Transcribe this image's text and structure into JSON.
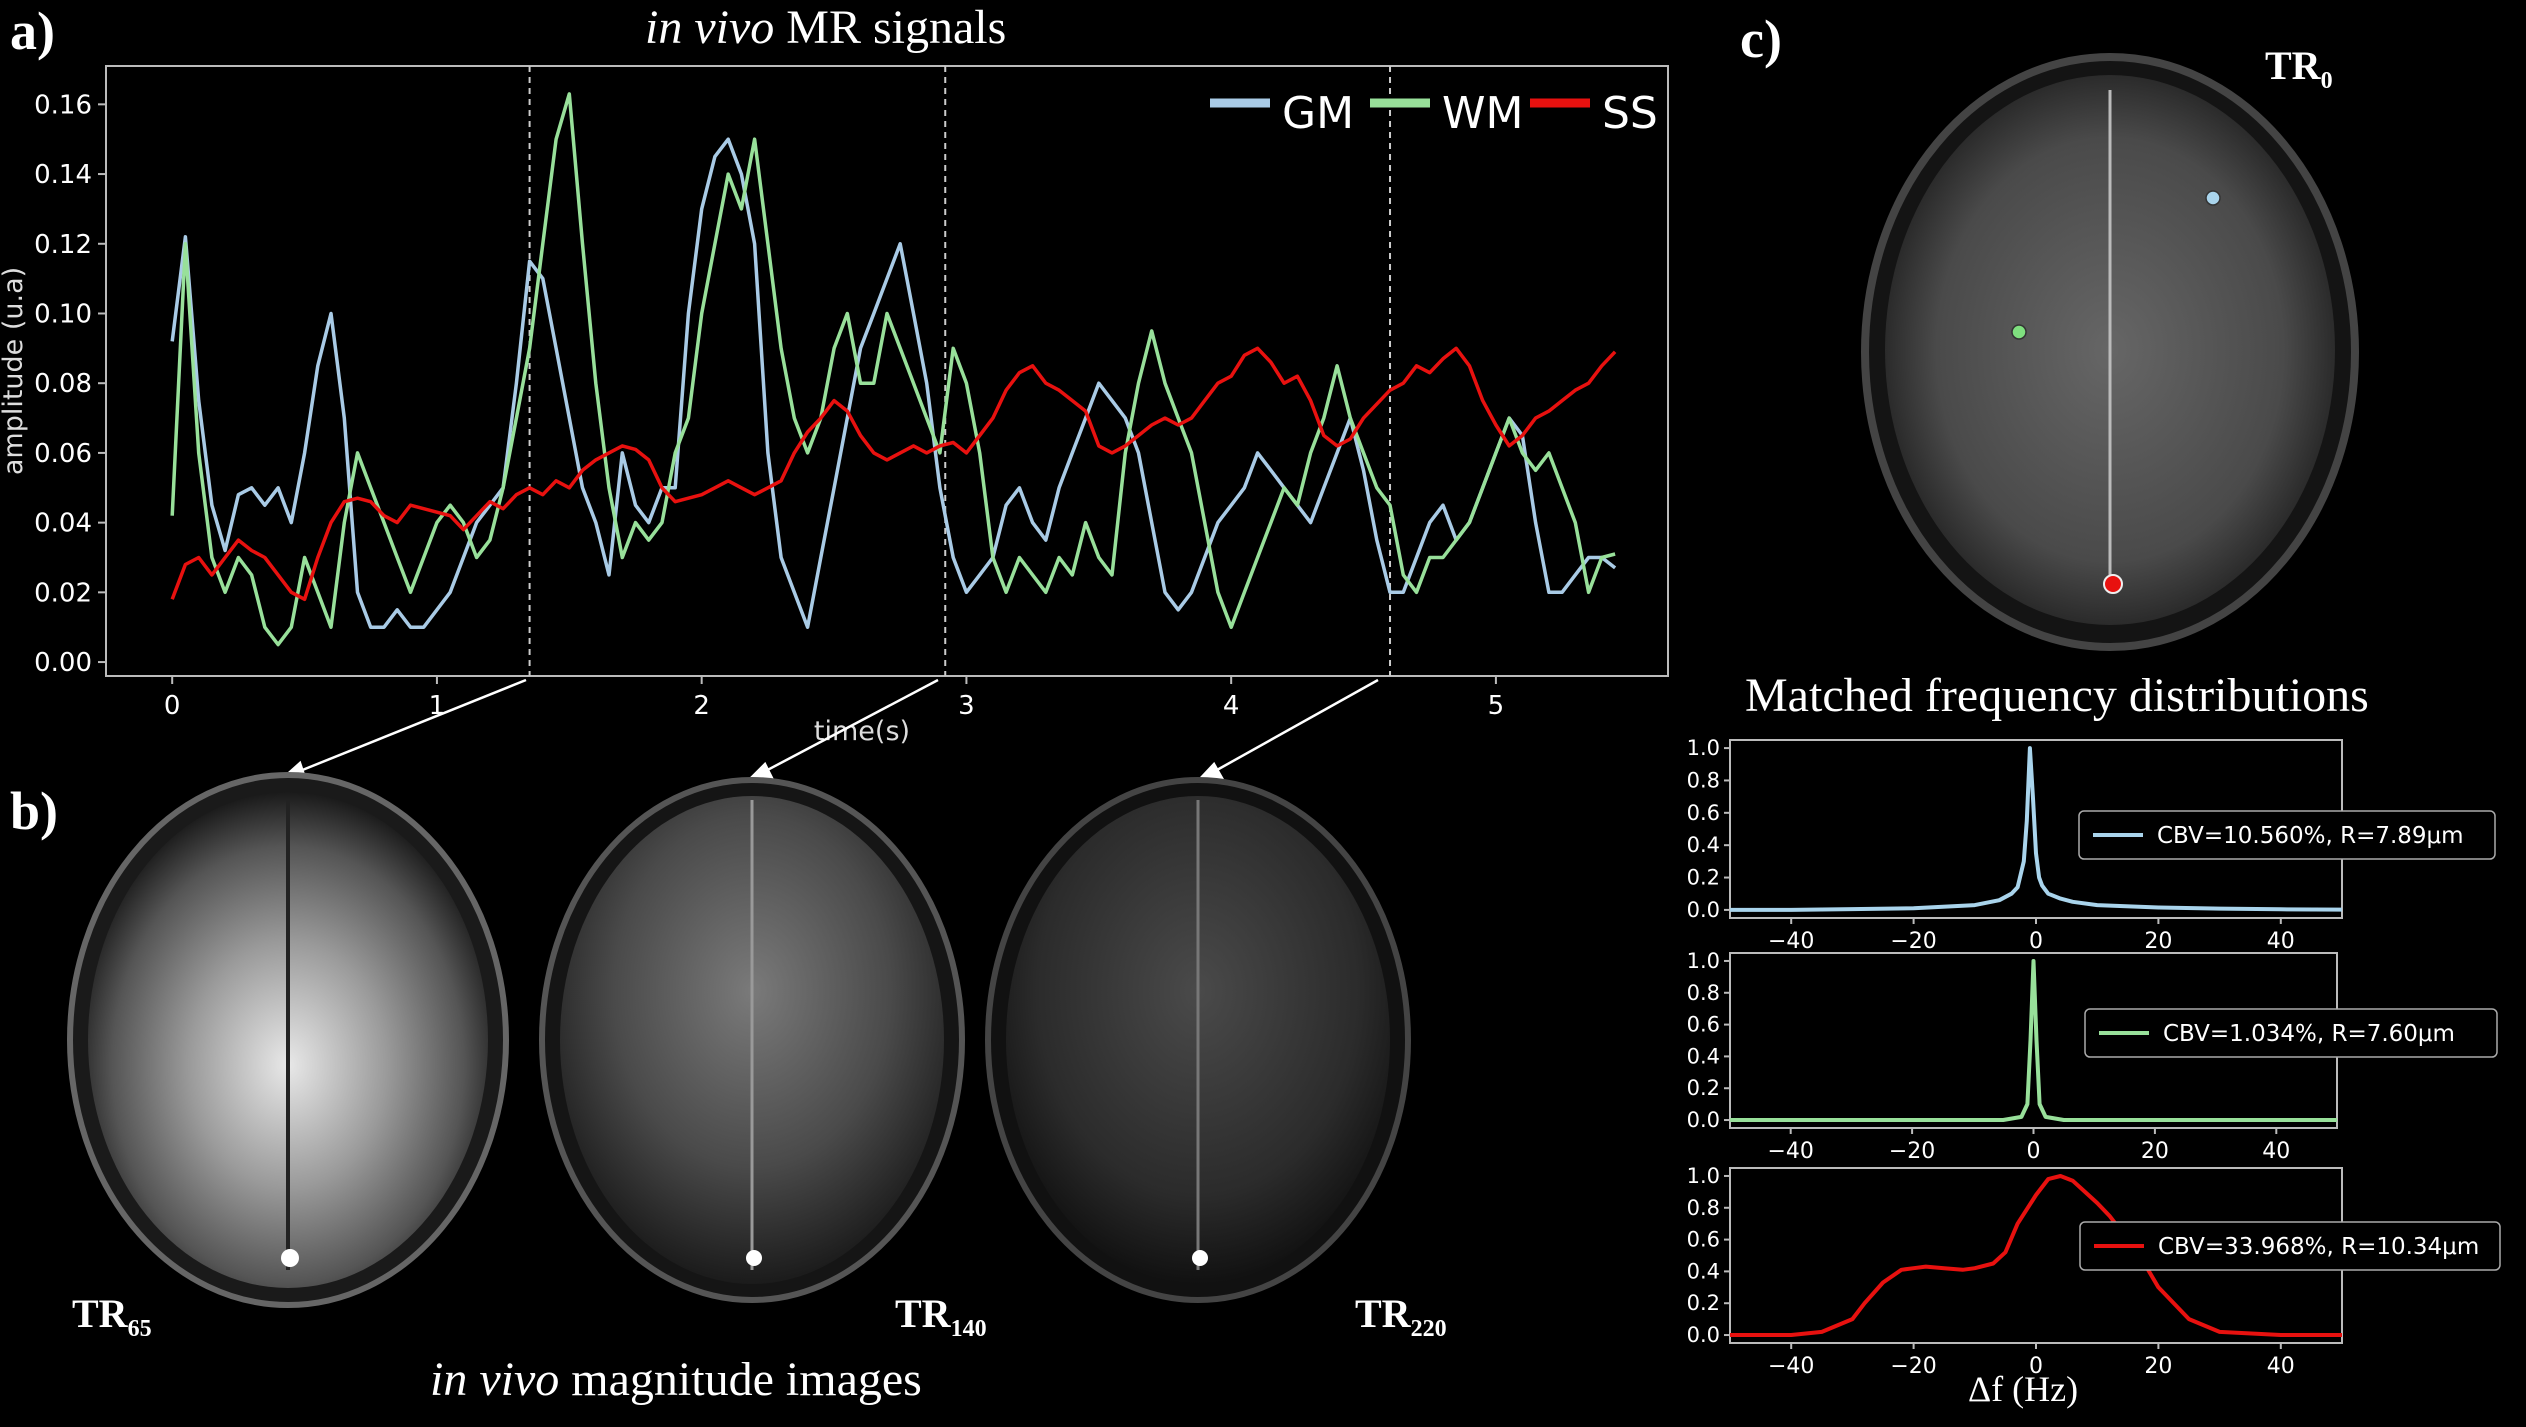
{
  "panels": {
    "a": "a)",
    "b": "b)",
    "c": "c)"
  },
  "signals": {
    "title_italic": "in vivo",
    "title_rest": "MR signals",
    "chart_data": {
      "type": "line",
      "xlabel": "time(s)",
      "ylabel": "amplitude (u.a)",
      "xlim": [
        -0.25,
        5.65
      ],
      "ylim": [
        -0.004,
        0.171
      ],
      "xticks": [
        "0",
        "1",
        "2",
        "3",
        "4",
        "5"
      ],
      "yticks": [
        "0.00",
        "0.02",
        "0.04",
        "0.06",
        "0.08",
        "0.10",
        "0.12",
        "0.14",
        "0.16"
      ],
      "vlines": [
        1.35,
        2.92,
        4.6
      ],
      "legend_position": "top-right",
      "series": [
        {
          "name": "GM",
          "color": "#a9cbe6",
          "x": [
            0,
            0.05,
            0.1,
            0.15,
            0.2,
            0.25,
            0.3,
            0.35,
            0.4,
            0.45,
            0.5,
            0.55,
            0.6,
            0.65,
            0.7,
            0.75,
            0.8,
            0.85,
            0.9,
            0.95,
            1.0,
            1.05,
            1.1,
            1.15,
            1.2,
            1.25,
            1.3,
            1.35,
            1.4,
            1.45,
            1.5,
            1.55,
            1.6,
            1.65,
            1.7,
            1.75,
            1.8,
            1.85,
            1.9,
            1.95,
            2.0,
            2.05,
            2.1,
            2.15,
            2.2,
            2.25,
            2.3,
            2.35,
            2.4,
            2.45,
            2.5,
            2.55,
            2.6,
            2.65,
            2.7,
            2.75,
            2.8,
            2.85,
            2.9,
            2.95,
            3.0,
            3.05,
            3.1,
            3.15,
            3.2,
            3.25,
            3.3,
            3.35,
            3.4,
            3.45,
            3.5,
            3.55,
            3.6,
            3.65,
            3.7,
            3.75,
            3.8,
            3.85,
            3.9,
            3.95,
            4.0,
            4.05,
            4.1,
            4.15,
            4.2,
            4.25,
            4.3,
            4.35,
            4.4,
            4.45,
            4.5,
            4.55,
            4.6,
            4.65,
            4.7,
            4.75,
            4.8,
            4.85,
            4.9,
            4.95,
            5.0,
            5.05,
            5.1,
            5.15,
            5.2,
            5.25,
            5.3,
            5.35,
            5.4,
            5.45
          ],
          "values": [
            0.092,
            0.122,
            0.075,
            0.045,
            0.032,
            0.048,
            0.05,
            0.045,
            0.05,
            0.04,
            0.06,
            0.085,
            0.1,
            0.07,
            0.02,
            0.01,
            0.01,
            0.015,
            0.01,
            0.01,
            0.015,
            0.02,
            0.03,
            0.04,
            0.045,
            0.05,
            0.08,
            0.115,
            0.11,
            0.09,
            0.07,
            0.05,
            0.04,
            0.025,
            0.06,
            0.045,
            0.04,
            0.05,
            0.05,
            0.1,
            0.13,
            0.145,
            0.15,
            0.14,
            0.12,
            0.06,
            0.03,
            0.02,
            0.01,
            0.03,
            0.05,
            0.07,
            0.09,
            0.1,
            0.11,
            0.12,
            0.1,
            0.08,
            0.05,
            0.03,
            0.02,
            0.025,
            0.03,
            0.045,
            0.05,
            0.04,
            0.035,
            0.05,
            0.06,
            0.07,
            0.08,
            0.075,
            0.07,
            0.06,
            0.04,
            0.02,
            0.015,
            0.02,
            0.03,
            0.04,
            0.045,
            0.05,
            0.06,
            0.055,
            0.05,
            0.045,
            0.04,
            0.05,
            0.06,
            0.07,
            0.055,
            0.035,
            0.02,
            0.02,
            0.03,
            0.04,
            0.045,
            0.035,
            0.04,
            0.05,
            0.06,
            0.07,
            0.065,
            0.04,
            0.02,
            0.02,
            0.025,
            0.03,
            0.03,
            0.027
          ]
        },
        {
          "name": "WM",
          "color": "#98e09a",
          "x": [
            0,
            0.05,
            0.1,
            0.15,
            0.2,
            0.25,
            0.3,
            0.35,
            0.4,
            0.45,
            0.5,
            0.55,
            0.6,
            0.65,
            0.7,
            0.75,
            0.8,
            0.85,
            0.9,
            0.95,
            1.0,
            1.05,
            1.1,
            1.15,
            1.2,
            1.25,
            1.3,
            1.35,
            1.4,
            1.45,
            1.5,
            1.55,
            1.6,
            1.65,
            1.7,
            1.75,
            1.8,
            1.85,
            1.9,
            1.95,
            2.0,
            2.05,
            2.1,
            2.15,
            2.2,
            2.25,
            2.3,
            2.35,
            2.4,
            2.45,
            2.5,
            2.55,
            2.6,
            2.65,
            2.7,
            2.75,
            2.8,
            2.85,
            2.9,
            2.95,
            3.0,
            3.05,
            3.1,
            3.15,
            3.2,
            3.25,
            3.3,
            3.35,
            3.4,
            3.45,
            3.5,
            3.55,
            3.6,
            3.65,
            3.7,
            3.75,
            3.8,
            3.85,
            3.9,
            3.95,
            4.0,
            4.05,
            4.1,
            4.15,
            4.2,
            4.25,
            4.3,
            4.35,
            4.4,
            4.45,
            4.5,
            4.55,
            4.6,
            4.65,
            4.7,
            4.75,
            4.8,
            4.85,
            4.9,
            4.95,
            5.0,
            5.05,
            5.1,
            5.15,
            5.2,
            5.25,
            5.3,
            5.35,
            5.4,
            5.45
          ],
          "values": [
            0.042,
            0.12,
            0.06,
            0.03,
            0.02,
            0.03,
            0.025,
            0.01,
            0.005,
            0.01,
            0.03,
            0.02,
            0.01,
            0.04,
            0.06,
            0.05,
            0.04,
            0.03,
            0.02,
            0.03,
            0.04,
            0.045,
            0.04,
            0.03,
            0.035,
            0.05,
            0.07,
            0.09,
            0.12,
            0.15,
            0.163,
            0.12,
            0.08,
            0.05,
            0.03,
            0.04,
            0.035,
            0.04,
            0.06,
            0.07,
            0.1,
            0.12,
            0.14,
            0.13,
            0.15,
            0.12,
            0.09,
            0.07,
            0.06,
            0.07,
            0.09,
            0.1,
            0.08,
            0.08,
            0.1,
            0.09,
            0.08,
            0.07,
            0.06,
            0.09,
            0.08,
            0.06,
            0.03,
            0.02,
            0.03,
            0.025,
            0.02,
            0.03,
            0.025,
            0.04,
            0.03,
            0.025,
            0.06,
            0.08,
            0.095,
            0.08,
            0.07,
            0.06,
            0.04,
            0.02,
            0.01,
            0.02,
            0.03,
            0.04,
            0.05,
            0.045,
            0.06,
            0.07,
            0.085,
            0.07,
            0.06,
            0.05,
            0.045,
            0.025,
            0.02,
            0.03,
            0.03,
            0.035,
            0.04,
            0.05,
            0.06,
            0.07,
            0.06,
            0.055,
            0.06,
            0.05,
            0.04,
            0.02,
            0.03,
            0.031
          ]
        },
        {
          "name": "SS",
          "color": "#e8110f",
          "x": [
            0,
            0.05,
            0.1,
            0.15,
            0.2,
            0.25,
            0.3,
            0.35,
            0.4,
            0.45,
            0.5,
            0.55,
            0.6,
            0.65,
            0.7,
            0.75,
            0.8,
            0.85,
            0.9,
            0.95,
            1.0,
            1.05,
            1.1,
            1.15,
            1.2,
            1.25,
            1.3,
            1.35,
            1.4,
            1.45,
            1.5,
            1.55,
            1.6,
            1.65,
            1.7,
            1.75,
            1.8,
            1.85,
            1.9,
            1.95,
            2.0,
            2.05,
            2.1,
            2.15,
            2.2,
            2.25,
            2.3,
            2.35,
            2.4,
            2.45,
            2.5,
            2.55,
            2.6,
            2.65,
            2.7,
            2.75,
            2.8,
            2.85,
            2.9,
            2.95,
            3.0,
            3.05,
            3.1,
            3.15,
            3.2,
            3.25,
            3.3,
            3.35,
            3.4,
            3.45,
            3.5,
            3.55,
            3.6,
            3.65,
            3.7,
            3.75,
            3.8,
            3.85,
            3.9,
            3.95,
            4.0,
            4.05,
            4.1,
            4.15,
            4.2,
            4.25,
            4.3,
            4.35,
            4.4,
            4.45,
            4.5,
            4.55,
            4.6,
            4.65,
            4.7,
            4.75,
            4.8,
            4.85,
            4.9,
            4.95,
            5.0,
            5.05,
            5.1,
            5.15,
            5.2,
            5.25,
            5.3,
            5.35,
            5.4,
            5.45
          ],
          "values": [
            0.018,
            0.028,
            0.03,
            0.025,
            0.03,
            0.035,
            0.032,
            0.03,
            0.025,
            0.02,
            0.018,
            0.03,
            0.04,
            0.046,
            0.047,
            0.046,
            0.042,
            0.04,
            0.045,
            0.044,
            0.043,
            0.042,
            0.038,
            0.042,
            0.046,
            0.044,
            0.048,
            0.05,
            0.048,
            0.052,
            0.05,
            0.055,
            0.058,
            0.06,
            0.062,
            0.061,
            0.058,
            0.05,
            0.046,
            0.047,
            0.048,
            0.05,
            0.052,
            0.05,
            0.048,
            0.05,
            0.052,
            0.06,
            0.066,
            0.07,
            0.075,
            0.072,
            0.065,
            0.06,
            0.058,
            0.06,
            0.062,
            0.06,
            0.062,
            0.063,
            0.06,
            0.065,
            0.07,
            0.078,
            0.083,
            0.085,
            0.08,
            0.078,
            0.075,
            0.072,
            0.062,
            0.06,
            0.062,
            0.065,
            0.068,
            0.07,
            0.068,
            0.07,
            0.075,
            0.08,
            0.082,
            0.088,
            0.09,
            0.086,
            0.08,
            0.082,
            0.075,
            0.065,
            0.062,
            0.064,
            0.07,
            0.074,
            0.078,
            0.08,
            0.085,
            0.083,
            0.087,
            0.09,
            0.085,
            0.075,
            0.068,
            0.062,
            0.065,
            0.07,
            0.072,
            0.075,
            0.078,
            0.08,
            0.085,
            0.089
          ]
        }
      ]
    }
  },
  "magnitude": {
    "caption_italic": "in vivo",
    "caption_rest": "magnitude images",
    "images": [
      {
        "tr_main": "TR",
        "tr_sub": "65"
      },
      {
        "tr_main": "TR",
        "tr_sub": "140"
      },
      {
        "tr_main": "TR",
        "tr_sub": "220"
      }
    ]
  },
  "reference": {
    "tr_main": "TR",
    "tr_sub": "0",
    "roi_colors": [
      "#a9d4ec",
      "#7fe07f",
      "#e8110f"
    ]
  },
  "distributions": {
    "title": "Matched frequency distributions",
    "xlabel": "Δf (Hz)",
    "chart_data": [
      {
        "type": "line",
        "xlim": [
          -50,
          50
        ],
        "ylim": [
          -0.05,
          1.05
        ],
        "xticks": [
          "−40",
          "−20",
          "0",
          "20",
          "40"
        ],
        "yticks": [
          "0.0",
          "0.2",
          "0.4",
          "0.6",
          "0.8",
          "1.0"
        ],
        "color": "#a9d4ec",
        "legend": "CBV=10.560%, R=7.89μm",
        "legend_position": "right",
        "x": [
          -50,
          -40,
          -30,
          -20,
          -10,
          -6,
          -4,
          -3,
          -2,
          -1.5,
          -1,
          -0.5,
          0,
          0.5,
          1,
          2,
          4,
          6,
          10,
          20,
          30,
          40,
          50
        ],
        "values": [
          0.0,
          0.0,
          0.005,
          0.01,
          0.03,
          0.06,
          0.1,
          0.14,
          0.3,
          0.55,
          1.0,
          0.7,
          0.35,
          0.2,
          0.15,
          0.1,
          0.07,
          0.05,
          0.03,
          0.015,
          0.008,
          0.004,
          0.002
        ]
      },
      {
        "type": "line",
        "xlim": [
          -50,
          50
        ],
        "ylim": [
          -0.05,
          1.05
        ],
        "xticks": [
          "−40",
          "−20",
          "0",
          "20",
          "40"
        ],
        "yticks": [
          "0.0",
          "0.2",
          "0.4",
          "0.6",
          "0.8",
          "1.0"
        ],
        "color": "#98e09a",
        "legend": "CBV=1.034%, R=7.60μm",
        "legend_position": "right",
        "x": [
          -50,
          -5,
          -2,
          -1,
          -0.5,
          0,
          0.5,
          1,
          2,
          5,
          50
        ],
        "values": [
          0.0,
          0.0,
          0.02,
          0.1,
          0.5,
          1.0,
          0.5,
          0.1,
          0.02,
          0.0,
          0.0
        ]
      },
      {
        "type": "line",
        "xlim": [
          -50,
          50
        ],
        "ylim": [
          -0.05,
          1.05
        ],
        "xticks": [
          "−40",
          "−20",
          "0",
          "20",
          "40"
        ],
        "yticks": [
          "0.0",
          "0.2",
          "0.4",
          "0.6",
          "0.8",
          "1.0"
        ],
        "color": "#e8110f",
        "legend": "CBV=33.968%, R=10.34μm",
        "legend_position": "right",
        "x": [
          -50,
          -40,
          -35,
          -30,
          -28,
          -25,
          -22,
          -20,
          -18,
          -15,
          -12,
          -10,
          -7,
          -5,
          -3,
          0,
          2,
          4,
          6,
          8,
          10,
          12,
          15,
          18,
          20,
          25,
          30,
          40,
          50
        ],
        "values": [
          0.0,
          0.0,
          0.02,
          0.1,
          0.2,
          0.33,
          0.41,
          0.42,
          0.43,
          0.42,
          0.41,
          0.42,
          0.45,
          0.52,
          0.7,
          0.88,
          0.98,
          1.0,
          0.97,
          0.9,
          0.83,
          0.75,
          0.6,
          0.43,
          0.3,
          0.1,
          0.02,
          0.0,
          0.0
        ]
      }
    ]
  }
}
